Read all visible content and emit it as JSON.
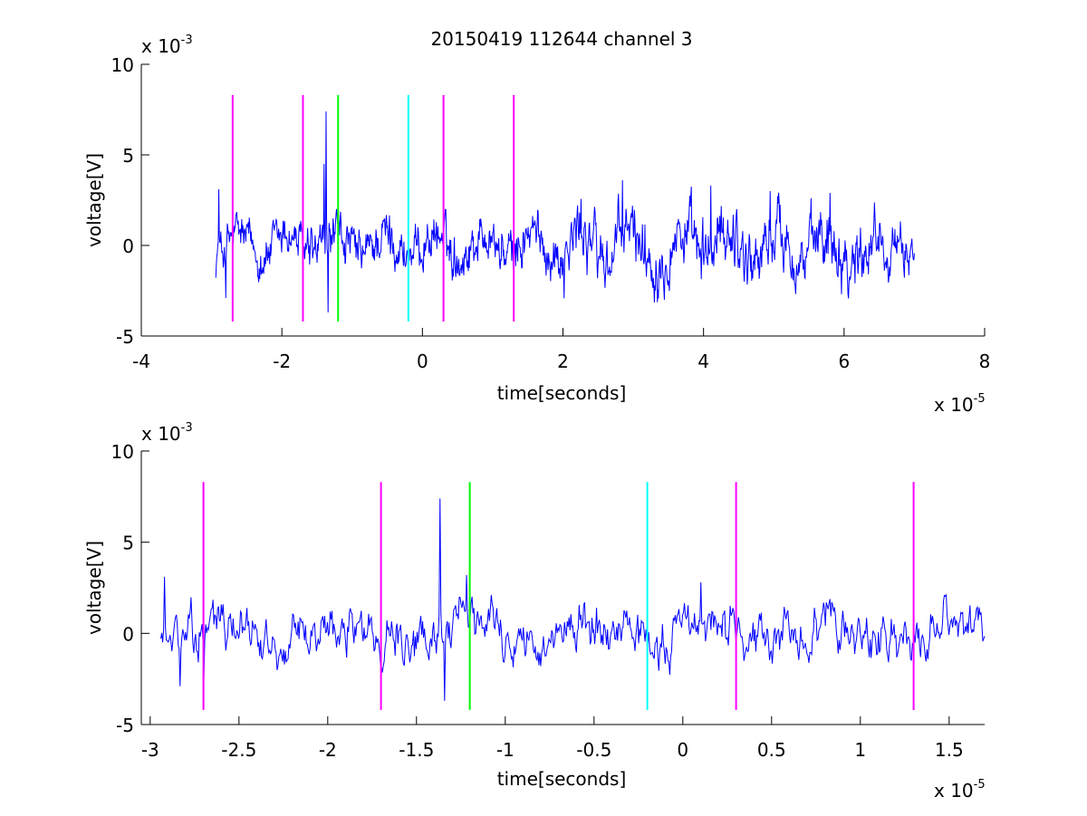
{
  "title": "20150419 112644 channel 3",
  "colors": {
    "signal": "#0000ff",
    "magenta": "#ff00ff",
    "green": "#00ff00",
    "cyan": "#00ffff"
  },
  "chart_data": [
    {
      "type": "line",
      "name": "overview",
      "xlabel": "time[seconds]",
      "ylabel": "voltage[V]",
      "x_exponent_label": "x 10",
      "x_exponent": "-5",
      "y_exponent_label": "x 10",
      "y_exponent": "-3",
      "xlim": [
        -4,
        8
      ],
      "ylim": [
        -5,
        10
      ],
      "xticks": [
        -4,
        -2,
        0,
        2,
        4,
        6,
        8
      ],
      "yticks": [
        -5,
        0,
        5,
        10
      ],
      "signal_range": [
        -2.94,
        7.0
      ],
      "markers": [
        {
          "x": -2.7,
          "color": "magenta",
          "y": [
            -4.2,
            8.3
          ]
        },
        {
          "x": -1.7,
          "color": "magenta",
          "y": [
            -4.2,
            8.3
          ]
        },
        {
          "x": -1.2,
          "color": "green",
          "y": [
            -4.2,
            8.3
          ]
        },
        {
          "x": -0.2,
          "color": "cyan",
          "y": [
            -4.2,
            8.3
          ]
        },
        {
          "x": 0.3,
          "color": "magenta",
          "y": [
            -4.2,
            8.3
          ]
        },
        {
          "x": 1.3,
          "color": "magenta",
          "y": [
            -4.2,
            8.3
          ]
        }
      ],
      "features": [
        {
          "x": -1.37,
          "y": 7.4
        },
        {
          "x": -1.34,
          "y": -3.7
        },
        {
          "x": -1.4,
          "y": 4.5
        },
        {
          "x": 2.85,
          "y": 3.6
        },
        {
          "x": 4.1,
          "y": 3.3
        },
        {
          "x": 4.95,
          "y": 3.0
        },
        {
          "x": 5.8,
          "y": 2.9
        },
        {
          "x": -2.9,
          "y": 3.1
        },
        {
          "x": -2.8,
          "y": -2.9
        }
      ]
    },
    {
      "type": "line",
      "name": "zoom",
      "xlabel": "time[seconds]",
      "ylabel": "voltage[V]",
      "x_exponent_label": "x 10",
      "x_exponent": "-5",
      "y_exponent_label": "x 10",
      "y_exponent": "-3",
      "xlim": [
        -3.05,
        1.7
      ],
      "ylim": [
        -5,
        10
      ],
      "xticks": [
        -3,
        -2.5,
        -2,
        -1.5,
        -1,
        -0.5,
        0,
        0.5,
        1,
        1.5
      ],
      "xticklabels": [
        "-3",
        "-2.5",
        "-2",
        "-1.5",
        "-1",
        "-0.5",
        "0",
        "0.5",
        "1",
        "1.5"
      ],
      "yticks": [
        -5,
        0,
        5,
        10
      ],
      "signal_range": [
        -2.94,
        1.7
      ],
      "markers": [
        {
          "x": -2.7,
          "color": "magenta",
          "y": [
            -4.2,
            8.3
          ]
        },
        {
          "x": -1.7,
          "color": "magenta",
          "y": [
            -4.2,
            8.3
          ]
        },
        {
          "x": -1.2,
          "color": "green",
          "y": [
            -4.2,
            8.3
          ]
        },
        {
          "x": -0.2,
          "color": "cyan",
          "y": [
            -4.2,
            8.3
          ]
        },
        {
          "x": 0.3,
          "color": "magenta",
          "y": [
            -4.2,
            8.3
          ]
        },
        {
          "x": 1.3,
          "color": "magenta",
          "y": [
            -4.2,
            8.3
          ]
        }
      ],
      "features": [
        {
          "x": -1.37,
          "y": 7.4
        },
        {
          "x": -1.34,
          "y": -3.7
        },
        {
          "x": -2.92,
          "y": 3.1
        },
        {
          "x": -2.83,
          "y": -2.9
        },
        {
          "x": -2.7,
          "y": -2.5
        },
        {
          "x": 0.1,
          "y": 2.8
        },
        {
          "x": -1.22,
          "y": 3.2
        }
      ]
    }
  ]
}
